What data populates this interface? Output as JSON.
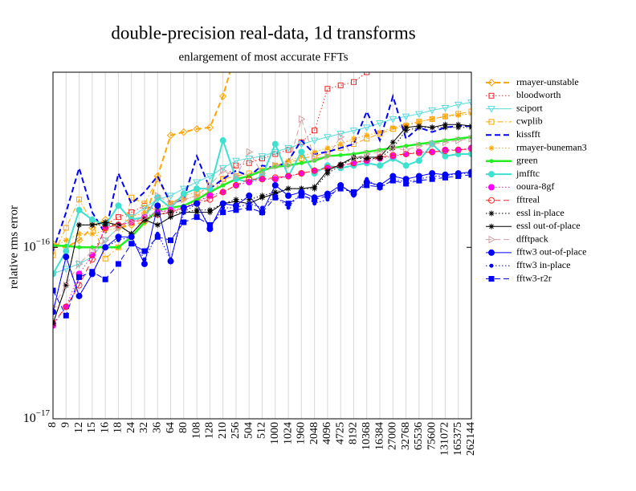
{
  "chart_data": {
    "type": "line",
    "title": "double-precision real-data, 1d transforms",
    "subtitle": "enlargement of most accurate FFTs",
    "y_label": "relative rms error",
    "log_y": true,
    "grid_x": true,
    "legend": "outside-right",
    "categories": [
      "8",
      "9",
      "12",
      "15",
      "16",
      "18",
      "24",
      "32",
      "36",
      "64",
      "80",
      "108",
      "128",
      "210",
      "256",
      "504",
      "512",
      "1000",
      "1024",
      "1960",
      "2048",
      "4096",
      "4725",
      "8192",
      "10368",
      "16384",
      "27000",
      "32768",
      "65536",
      "75600",
      "131072",
      "165375",
      "262144"
    ],
    "ylim": [
      1e-17,
      1.05e-15
    ],
    "yticks": [
      {
        "value": 1e-17,
        "label": "10−17"
      },
      {
        "value": 1e-16,
        "label": "10−16"
      }
    ],
    "series": [
      {
        "name": "rmayer-unstable",
        "color": "#ffa500",
        "dash": "dashed",
        "width": 2,
        "marker": "diamond-open",
        "values": [
          1.05e-16,
          1e-16,
          1.1e-16,
          1.3e-16,
          1.45e-16,
          1.3e-16,
          1.35e-16,
          1.4e-16,
          2.6e-16,
          4.5e-16,
          4.7e-16,
          4.9e-16,
          5e-16,
          7.6e-16,
          1.4e-15,
          null,
          null,
          null,
          null,
          null,
          null,
          null,
          null,
          null,
          null,
          null,
          null,
          null,
          null,
          null,
          null,
          null,
          null
        ]
      },
      {
        "name": "bloodworth",
        "color": "#ee2222",
        "dash": "dotted",
        "width": 1,
        "marker": "square-open",
        "values": [
          null,
          null,
          null,
          null,
          1.35e-16,
          1.5e-16,
          1.6e-16,
          1.75e-16,
          1.65e-16,
          1.6e-16,
          1.7e-16,
          1.85e-16,
          2e-16,
          2.5e-16,
          3e-16,
          3.1e-16,
          3.3e-16,
          3.5e-16,
          3.7e-16,
          4.1e-16,
          4.8e-16,
          8.4e-16,
          8.8e-16,
          9.2e-16,
          1.05e-15,
          1.2e-15,
          null,
          null,
          null,
          null,
          null,
          null,
          null
        ]
      },
      {
        "name": "sciport",
        "color": "#55dddd",
        "dash": "solid",
        "width": 1,
        "marker": "tri-down-open",
        "values": [
          7e-17,
          7.5e-17,
          8e-17,
          8.8e-17,
          1.1e-16,
          1.3e-16,
          1.5e-16,
          1.7e-16,
          1.9e-16,
          2e-16,
          2.2e-16,
          2.4e-16,
          2.6e-16,
          2.9e-16,
          3.2e-16,
          3.3e-16,
          3.4e-16,
          3.6e-16,
          3.8e-16,
          4e-16,
          4.2e-16,
          4.4e-16,
          4.6e-16,
          4.8e-16,
          5e-16,
          5.3e-16,
          5.6e-16,
          5.8e-16,
          6e-16,
          6.3e-16,
          6.5e-16,
          6.8e-16,
          7e-16
        ]
      },
      {
        "name": "cwplib",
        "color": "#ffa500",
        "dash": "dashdot",
        "width": 1,
        "marker": "square-open",
        "values": [
          9e-17,
          1.3e-16,
          1.9e-16,
          1.4e-16,
          8.6e-17,
          1e-16,
          1.95e-16,
          1.8e-16,
          2.5e-16,
          1.8e-16,
          2e-16,
          2.1e-16,
          2.2e-16,
          2.5e-16,
          2.6e-16,
          2.7e-16,
          2.8e-16,
          3e-16,
          3.1e-16,
          3.3e-16,
          3.4e-16,
          3.6e-16,
          3.8e-16,
          4e-16,
          4.3e-16,
          4.6e-16,
          4.9e-16,
          5.1e-16,
          5.4e-16,
          5.6e-16,
          5.8e-16,
          6e-16,
          6.2e-16
        ]
      },
      {
        "name": "kissfft",
        "color": "#0000ff",
        "dash": "dashed",
        "width": 2,
        "marker": "none",
        "values": [
          9.5e-17,
          1.6e-16,
          2.9e-16,
          1.6e-16,
          1.2e-16,
          2.7e-16,
          1.8e-16,
          2.1e-16,
          2.6e-16,
          1.8e-16,
          1.9e-16,
          3.4e-16,
          2.2e-16,
          2.5e-16,
          2.8e-16,
          2.6e-16,
          3e-16,
          2.9e-16,
          3.2e-16,
          4.2e-16,
          3.5e-16,
          3.6e-16,
          3.8e-16,
          4e-16,
          6.2e-16,
          4.2e-16,
          7.6e-16,
          4.3e-16,
          5e-16,
          4.7e-16,
          5e-16,
          5.1e-16,
          5.1e-16
        ]
      },
      {
        "name": "rmayer-buneman3",
        "color": "#ffa500",
        "dash": "dotted",
        "width": 1,
        "marker": "star",
        "values": [
          1e-16,
          1.1e-16,
          1.2e-16,
          1.2e-16,
          1.25e-16,
          1.3e-16,
          1.5e-16,
          1.6e-16,
          1.7e-16,
          1.8e-16,
          1.9e-16,
          2e-16,
          2.1e-16,
          2.3e-16,
          2.5e-16,
          2.6e-16,
          2.8e-16,
          3e-16,
          3.2e-16,
          3.4e-16,
          3.6e-16,
          3.8e-16,
          4e-16,
          4.3e-16,
          4.5e-16,
          4.7e-16,
          5e-16,
          5.2e-16,
          5.4e-16,
          5.6e-16,
          5.8e-16,
          5.9e-16,
          6e-16
        ]
      },
      {
        "name": "green",
        "color": "#22ee22",
        "dash": "solid",
        "width": 2.5,
        "marker": "dot",
        "values": [
          1.02e-16,
          1.02e-16,
          1e-16,
          1e-16,
          1e-16,
          1e-16,
          1.15e-16,
          1.4e-16,
          1.65e-16,
          1.7e-16,
          1.75e-16,
          1.9e-16,
          2.1e-16,
          2.3e-16,
          2.5e-16,
          2.6e-16,
          2.8e-16,
          2.95e-16,
          3e-16,
          3.1e-16,
          3.2e-16,
          3.4e-16,
          3.45e-16,
          3.5e-16,
          3.6e-16,
          3.7e-16,
          3.8e-16,
          3.9e-16,
          4e-16,
          4.1e-16,
          4.2e-16,
          4.3e-16,
          4.4e-16
        ]
      },
      {
        "name": "jmfftc",
        "color": "#40e0d0",
        "dash": "solid",
        "width": 2,
        "marker": "circle",
        "values": [
          7e-17,
          9.5e-17,
          1.65e-16,
          1.45e-16,
          1.35e-16,
          1.75e-16,
          1.45e-16,
          1.5e-16,
          1.95e-16,
          1.7e-16,
          2.05e-16,
          2.2e-16,
          2.2e-16,
          4.2e-16,
          2.5e-16,
          2.4e-16,
          2.6e-16,
          4e-16,
          2.6e-16,
          3.6e-16,
          2.7e-16,
          3e-16,
          2.9e-16,
          3e-16,
          3.1e-16,
          3e-16,
          3.3e-16,
          3e-16,
          3.2e-16,
          4e-16,
          3.4e-16,
          3.5e-16,
          3.5e-16
        ]
      },
      {
        "name": "ooura-8gf",
        "color": "#ff00ff",
        "dash": "dotted",
        "width": 1,
        "marker": "circle",
        "values": [
          3.5e-17,
          4.5e-17,
          7e-17,
          9e-17,
          1.3e-16,
          1.35e-16,
          1.4e-16,
          1.5e-16,
          1.6e-16,
          1.65e-16,
          1.7e-16,
          1.8e-16,
          2e-16,
          2.1e-16,
          2.3e-16,
          2.4e-16,
          2.5e-16,
          2.5e-16,
          2.6e-16,
          2.7e-16,
          2.8e-16,
          2.9e-16,
          3e-16,
          3.1e-16,
          3.2e-16,
          3.3e-16,
          3.4e-16,
          3.5e-16,
          3.6e-16,
          3.6e-16,
          3.7e-16,
          3.7e-16,
          3.8e-16
        ]
      },
      {
        "name": "fftreal",
        "color": "#ff2222",
        "dash": "dashed",
        "width": 1,
        "marker": "circle-open",
        "values": [
          3.6e-17,
          4.5e-17,
          6e-17,
          8.5e-17,
          1.3e-16,
          1.35e-16,
          1.4e-16,
          1.45e-16,
          1.55e-16,
          1.6e-16,
          1.7e-16,
          1.8e-16,
          1.9e-16,
          2.1e-16,
          2.3e-16,
          2.5e-16,
          2.5e-16,
          2.55e-16,
          2.6e-16,
          2.7e-16,
          2.8e-16,
          2.9e-16,
          3e-16,
          3.1e-16,
          3.25e-16,
          3.35e-16,
          3.45e-16,
          3.5e-16,
          3.55e-16,
          3.6e-16,
          3.65e-16,
          3.7e-16,
          3.75e-16
        ]
      },
      {
        "name": "essl in-place",
        "color": "#000000",
        "dash": "dotted",
        "width": 1,
        "marker": "star",
        "values": [
          3.6e-17,
          6e-17,
          1.35e-16,
          1.35e-16,
          1.35e-16,
          1.35e-16,
          1.2e-16,
          1.45e-16,
          1.55e-16,
          1.6e-16,
          1.6e-16,
          1.65e-16,
          1.65e-16,
          1.8e-16,
          1.9e-16,
          1.9e-16,
          2e-16,
          2.1e-16,
          2.2e-16,
          2.2e-16,
          2.2e-16,
          2.7e-16,
          3e-16,
          3.3e-16,
          3.3e-16,
          3.3e-16,
          3.8e-16,
          4.8e-16,
          5e-16,
          5e-16,
          5e-16,
          5e-16,
          5e-16
        ]
      },
      {
        "name": "essl out-of-place",
        "color": "#000000",
        "dash": "solid",
        "width": 1,
        "marker": "star",
        "values": [
          3.6e-17,
          6e-17,
          1.35e-16,
          1.35e-16,
          1.4e-16,
          1.35e-16,
          1.2e-16,
          1.45e-16,
          1.35e-16,
          1.5e-16,
          1.6e-16,
          1.6e-16,
          1.6e-16,
          1.8e-16,
          1.85e-16,
          1.8e-16,
          1.95e-16,
          2.05e-16,
          2.2e-16,
          2.2e-16,
          2.25e-16,
          2.8e-16,
          3.05e-16,
          3.35e-16,
          3.35e-16,
          3.35e-16,
          4.1e-16,
          5e-16,
          5.1e-16,
          5e-16,
          5.2e-16,
          5.2e-16,
          5.1e-16
        ]
      },
      {
        "name": "dfftpack",
        "color": "#d4a0a0",
        "dash": "dashed",
        "width": 1,
        "marker": "tri-right-open",
        "values": [
          4.5e-17,
          6e-17,
          8e-17,
          9.5e-17,
          1.1e-16,
          1.3e-16,
          1.4e-16,
          1.5e-16,
          2e-16,
          1.8e-16,
          1.9e-16,
          2e-16,
          2.3e-16,
          2.8e-16,
          2.6e-16,
          3.6e-16,
          2.7e-16,
          3e-16,
          3e-16,
          5.6e-16,
          3.3e-16,
          3.4e-16,
          4.4e-16,
          3.3e-16,
          3.5e-16,
          3.6e-16,
          3.8e-16,
          3.7e-16,
          3.9e-16,
          4e-16,
          4.1e-16,
          4.2e-16,
          4.3e-16
        ]
      },
      {
        "name": "fftw3 out-of-place",
        "color": "#0000ff",
        "dash": "solid",
        "width": 1,
        "marker": "circle",
        "values": [
          4.2e-17,
          8.8e-17,
          5.2e-17,
          7e-17,
          1e-16,
          1.15e-16,
          1.15e-16,
          8e-17,
          1.75e-16,
          8.3e-17,
          1.7e-16,
          1.8e-16,
          1.28e-16,
          1.8e-16,
          1.75e-16,
          2e-16,
          1.6e-16,
          2.3e-16,
          2e-16,
          2.1e-16,
          1.95e-16,
          2.05e-16,
          2.3e-16,
          2.05e-16,
          2.4e-16,
          2.3e-16,
          2.6e-16,
          2.5e-16,
          2.6e-16,
          2.7e-16,
          2.65e-16,
          2.7e-16,
          2.75e-16
        ]
      },
      {
        "name": "fftw3 in-place",
        "color": "#0000ff",
        "dash": "dotted",
        "width": 1,
        "marker": "dot",
        "values": [
          4.2e-17,
          8.8e-17,
          5.2e-17,
          7e-17,
          1e-16,
          1.1e-16,
          1.15e-16,
          8.5e-17,
          1.2e-16,
          8.5e-17,
          1.6e-16,
          1.8e-16,
          1.3e-16,
          1.7e-16,
          1.7e-16,
          1.8e-16,
          1.7e-16,
          2e-16,
          1.7e-16,
          2.1e-16,
          1.8e-16,
          1.9e-16,
          2.3e-16,
          2e-16,
          2.5e-16,
          2.2e-16,
          2.5e-16,
          2.4e-16,
          2.5e-16,
          2.6e-16,
          2.6e-16,
          2.7e-16,
          2.7e-16
        ]
      },
      {
        "name": "fftw3-r2r",
        "color": "#0000ff",
        "dash": "dashed",
        "width": 1,
        "marker": "square",
        "values": [
          5.6e-17,
          4e-17,
          6.7e-17,
          7.2e-17,
          6.5e-17,
          8e-17,
          1.05e-16,
          9.5e-17,
          1.15e-16,
          1.1e-16,
          1.4e-16,
          1.5e-16,
          1.35e-16,
          1.6e-16,
          1.65e-16,
          1.7e-16,
          1.6e-16,
          1.95e-16,
          1.8e-16,
          2e-16,
          1.9e-16,
          2e-16,
          2.2e-16,
          2.1e-16,
          2.3e-16,
          2.25e-16,
          2.45e-16,
          2.35e-16,
          2.45e-16,
          2.5e-16,
          2.55e-16,
          2.6e-16,
          2.65e-16
        ]
      }
    ]
  }
}
